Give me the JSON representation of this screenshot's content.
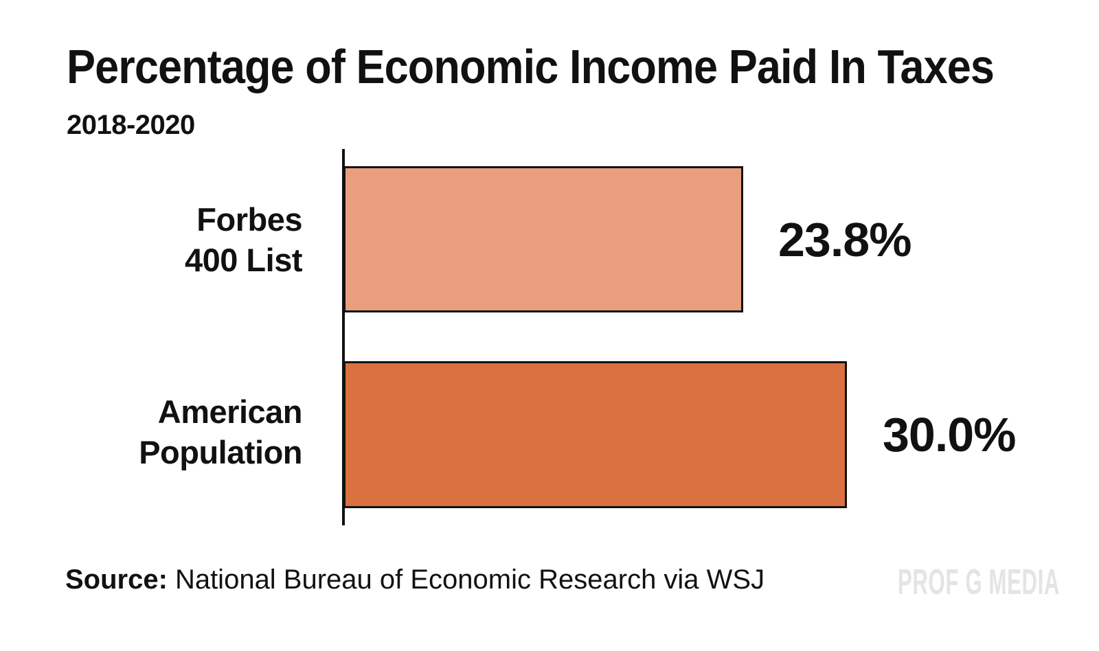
{
  "chart_data": {
    "type": "bar",
    "orientation": "horizontal",
    "title": "Percentage of Economic Income Paid In Taxes",
    "subtitle": "2018-2020",
    "categories": [
      "Forbes 400 List",
      "American Population"
    ],
    "values": [
      23.8,
      30.0
    ],
    "xlabel": "",
    "ylabel": "",
    "xlim": [
      0,
      30
    ],
    "grid": false,
    "legend": false,
    "rows": [
      {
        "label_lines": [
          "Forbes",
          "400 List"
        ],
        "value": 23.8,
        "value_label": "23.8%",
        "color": "#E99E7D"
      },
      {
        "label_lines": [
          "American",
          "Population"
        ],
        "value": 30.0,
        "value_label": "30.0%",
        "color": "#DB7140"
      }
    ]
  },
  "footer": {
    "source_label": "Source:",
    "source_text": "National Bureau of Economic Research via WSJ",
    "watermark": "PROF G MEDIA"
  },
  "colors": {
    "bar_light": "#E99E7D",
    "bar_dark": "#DB7140",
    "axis": "#111111",
    "text": "#111111",
    "watermark": "#E4E4E4",
    "background": "#FFFFFF"
  }
}
